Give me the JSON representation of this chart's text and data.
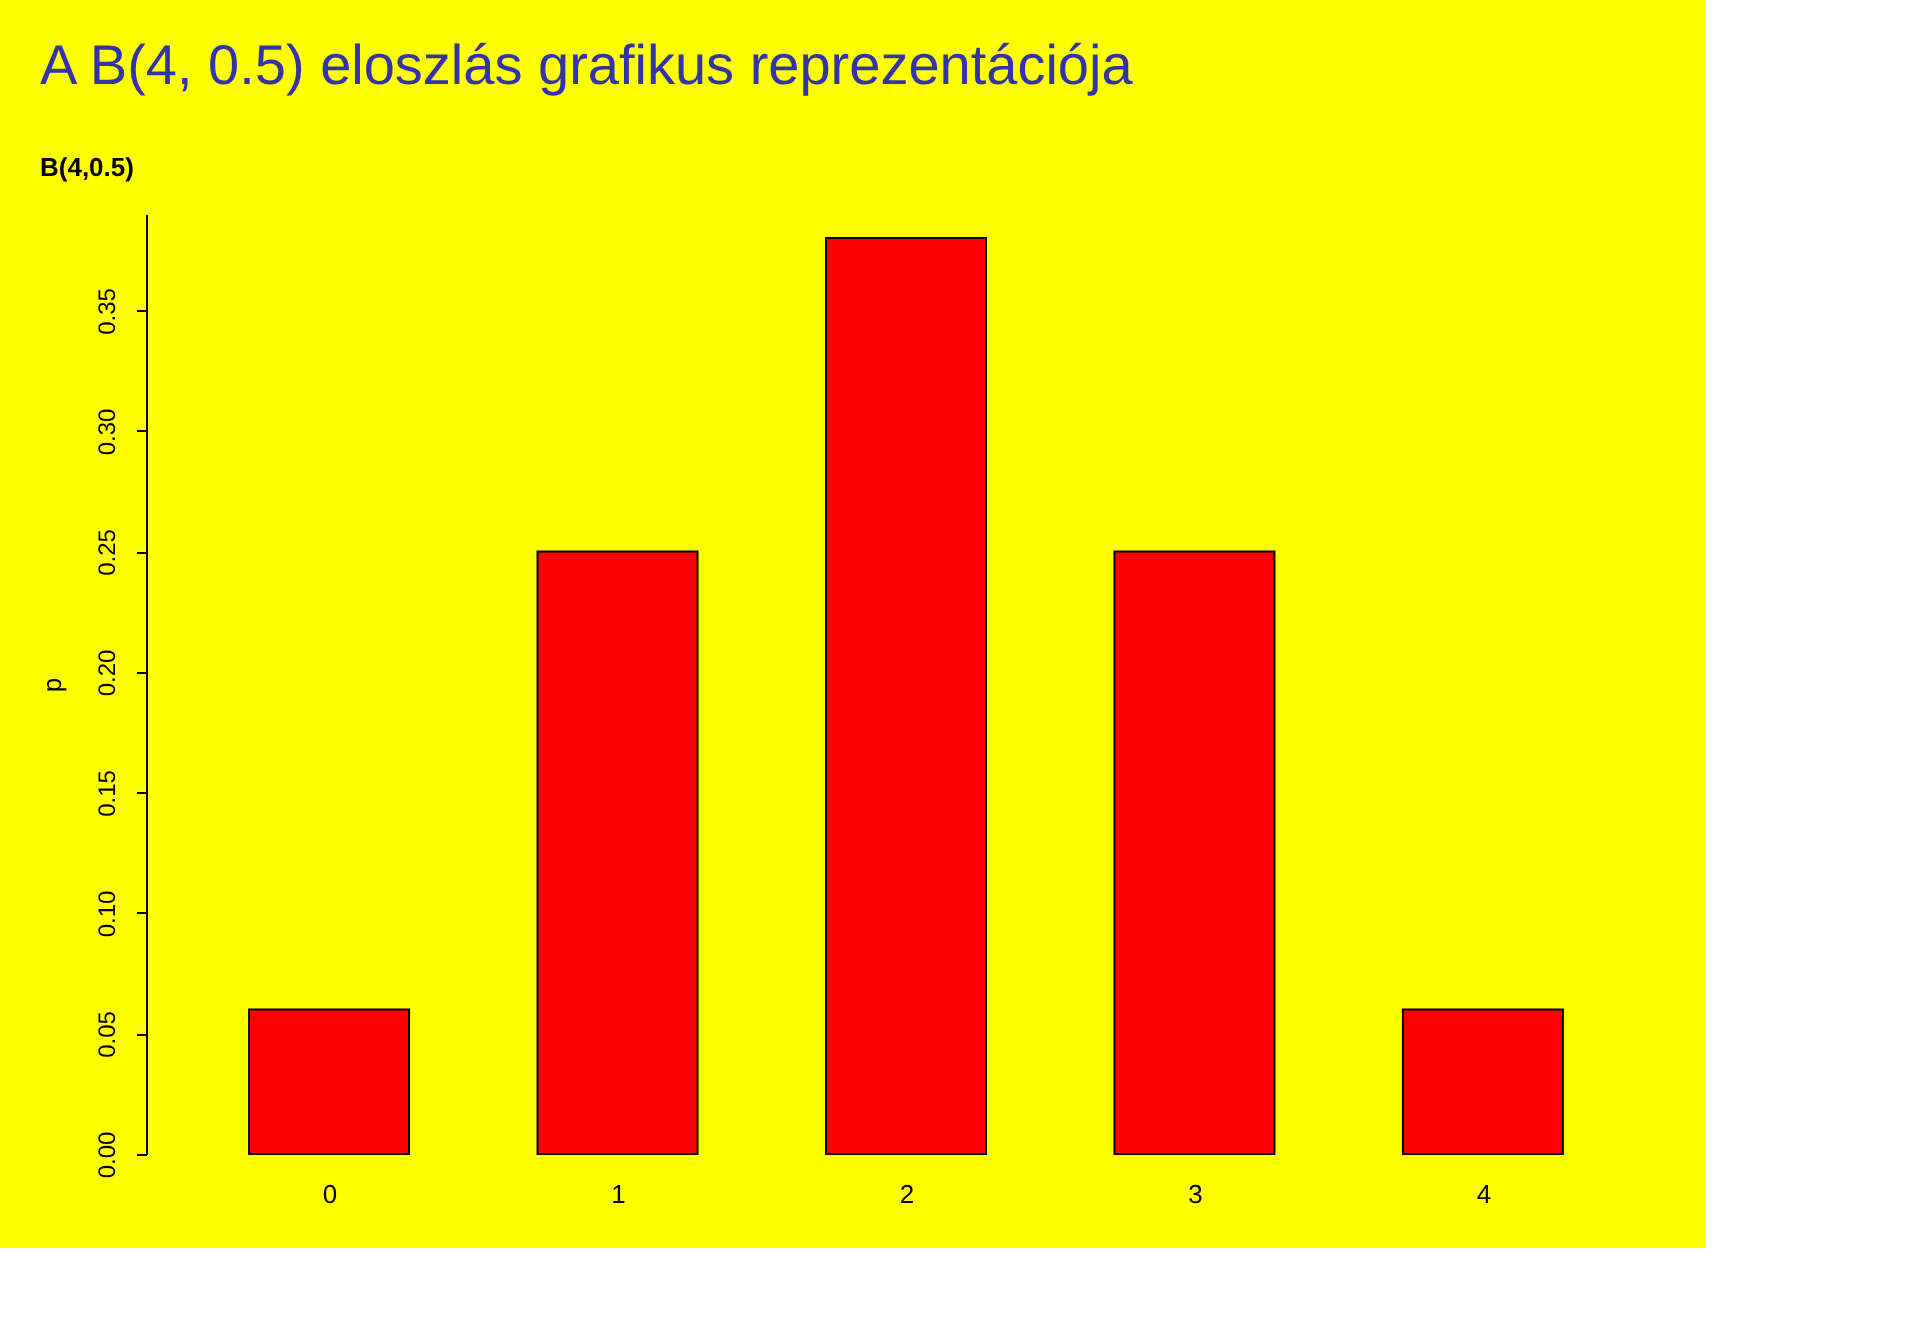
{
  "chart_data": {
    "type": "bar",
    "title": "A B(4, 0.5) eloszlás grafikus reprezentációja",
    "subtitle": "B(4,0.5)",
    "ylabel": "p",
    "categories": [
      "0",
      "1",
      "2",
      "3",
      "4"
    ],
    "values": [
      0.06,
      0.25,
      0.38,
      0.25,
      0.06
    ],
    "color": "#ff0000",
    "ylim": [
      0,
      0.39
    ],
    "yticks": [
      {
        "value": 0,
        "label": "0.00"
      },
      0.05,
      {
        "value": 0.1,
        "label": "0.10"
      },
      0.15,
      {
        "value": 0.2,
        "label": "0.20"
      },
      0.25,
      {
        "value": 0.3,
        "label": "0.30"
      },
      0.35
    ],
    "grid": false
  }
}
